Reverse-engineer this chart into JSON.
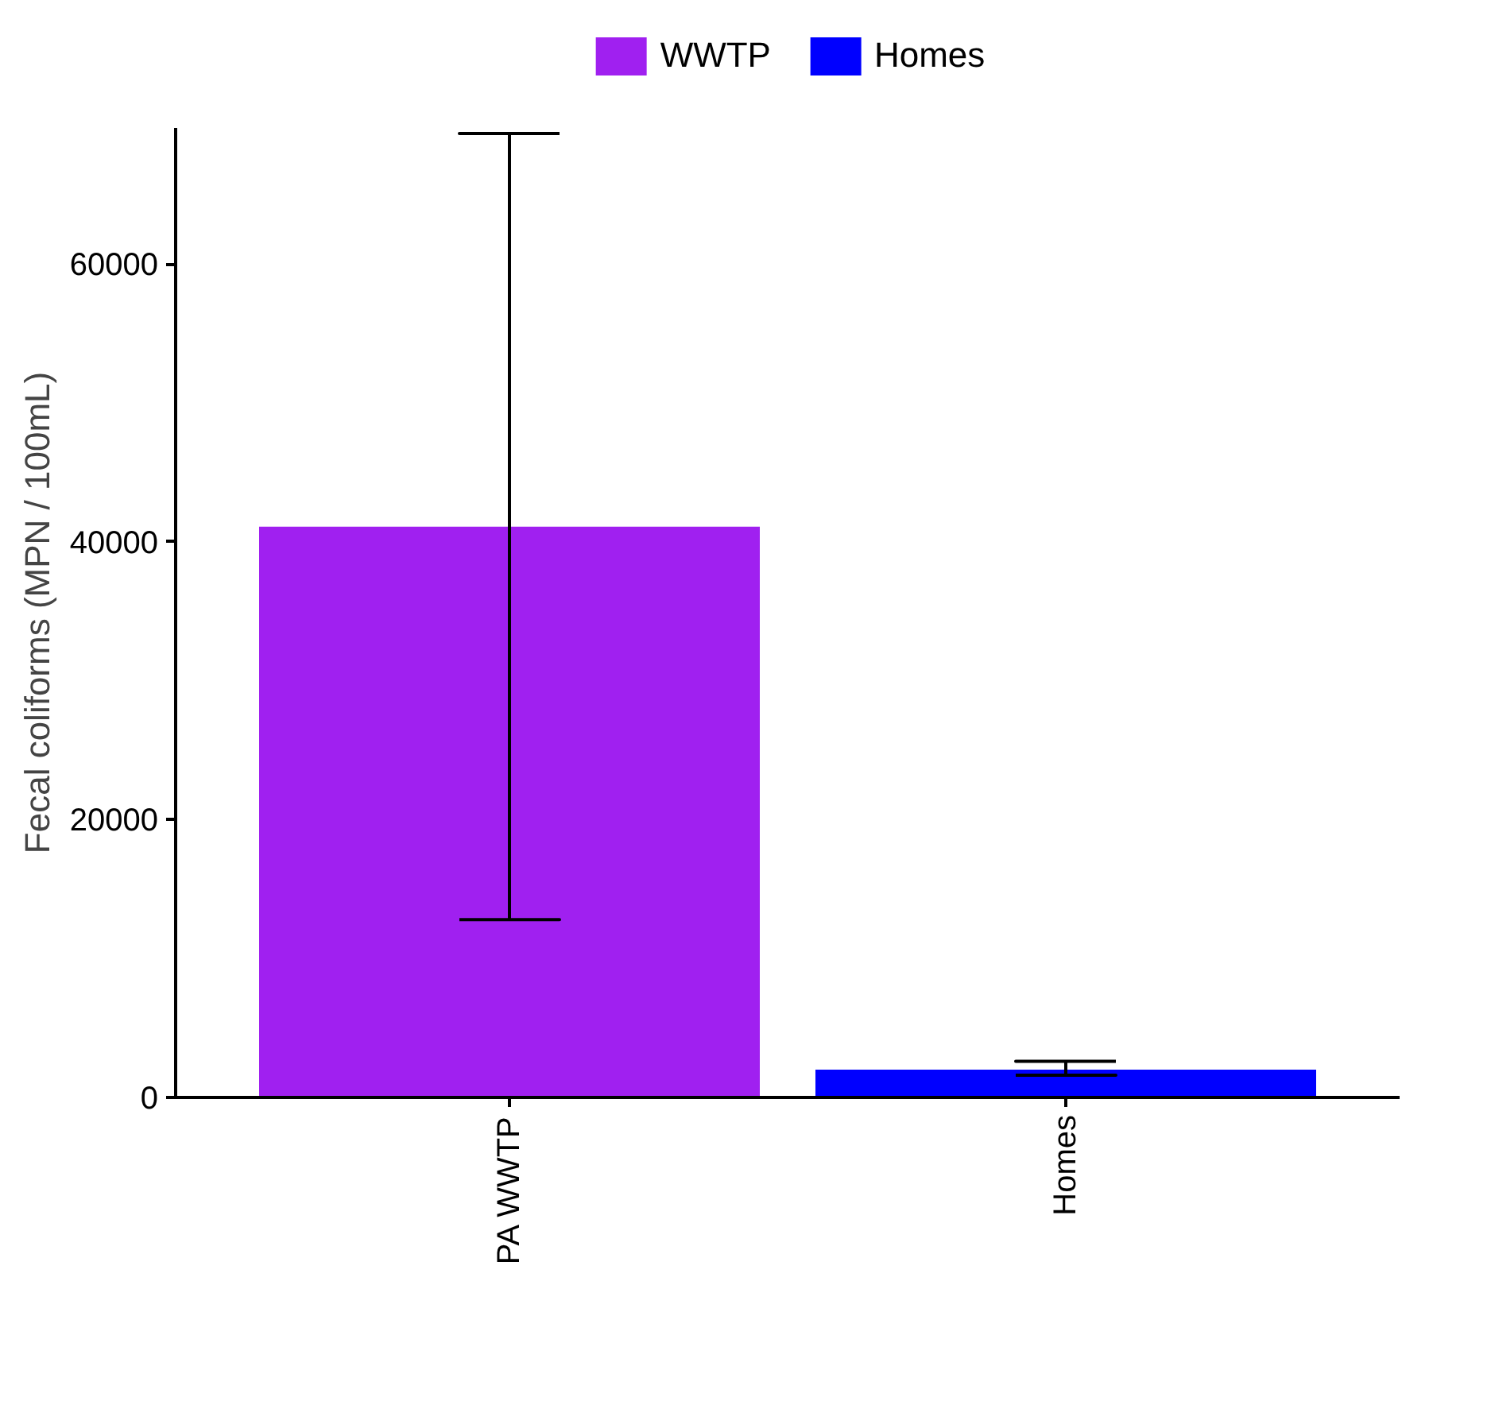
{
  "chart_data": {
    "type": "bar",
    "ylabel": "Fecal coliforms (MPN / 100mL)",
    "categories": [
      "PA WWTP",
      "Homes"
    ],
    "series": [
      {
        "name": "WWTP",
        "color": "#a020f0",
        "values": [
          41100,
          null
        ],
        "errors": [
          [
            12800,
            69400
          ],
          null
        ]
      },
      {
        "name": "Homes",
        "color": "#0000ff",
        "values": [
          null,
          2000
        ],
        "errors": [
          null,
          [
            1600,
            2600
          ]
        ]
      }
    ],
    "ylim": [
      0,
      69800
    ],
    "yticks": [
      0,
      20000,
      40000,
      60000
    ],
    "grid": false,
    "legend": "top"
  }
}
